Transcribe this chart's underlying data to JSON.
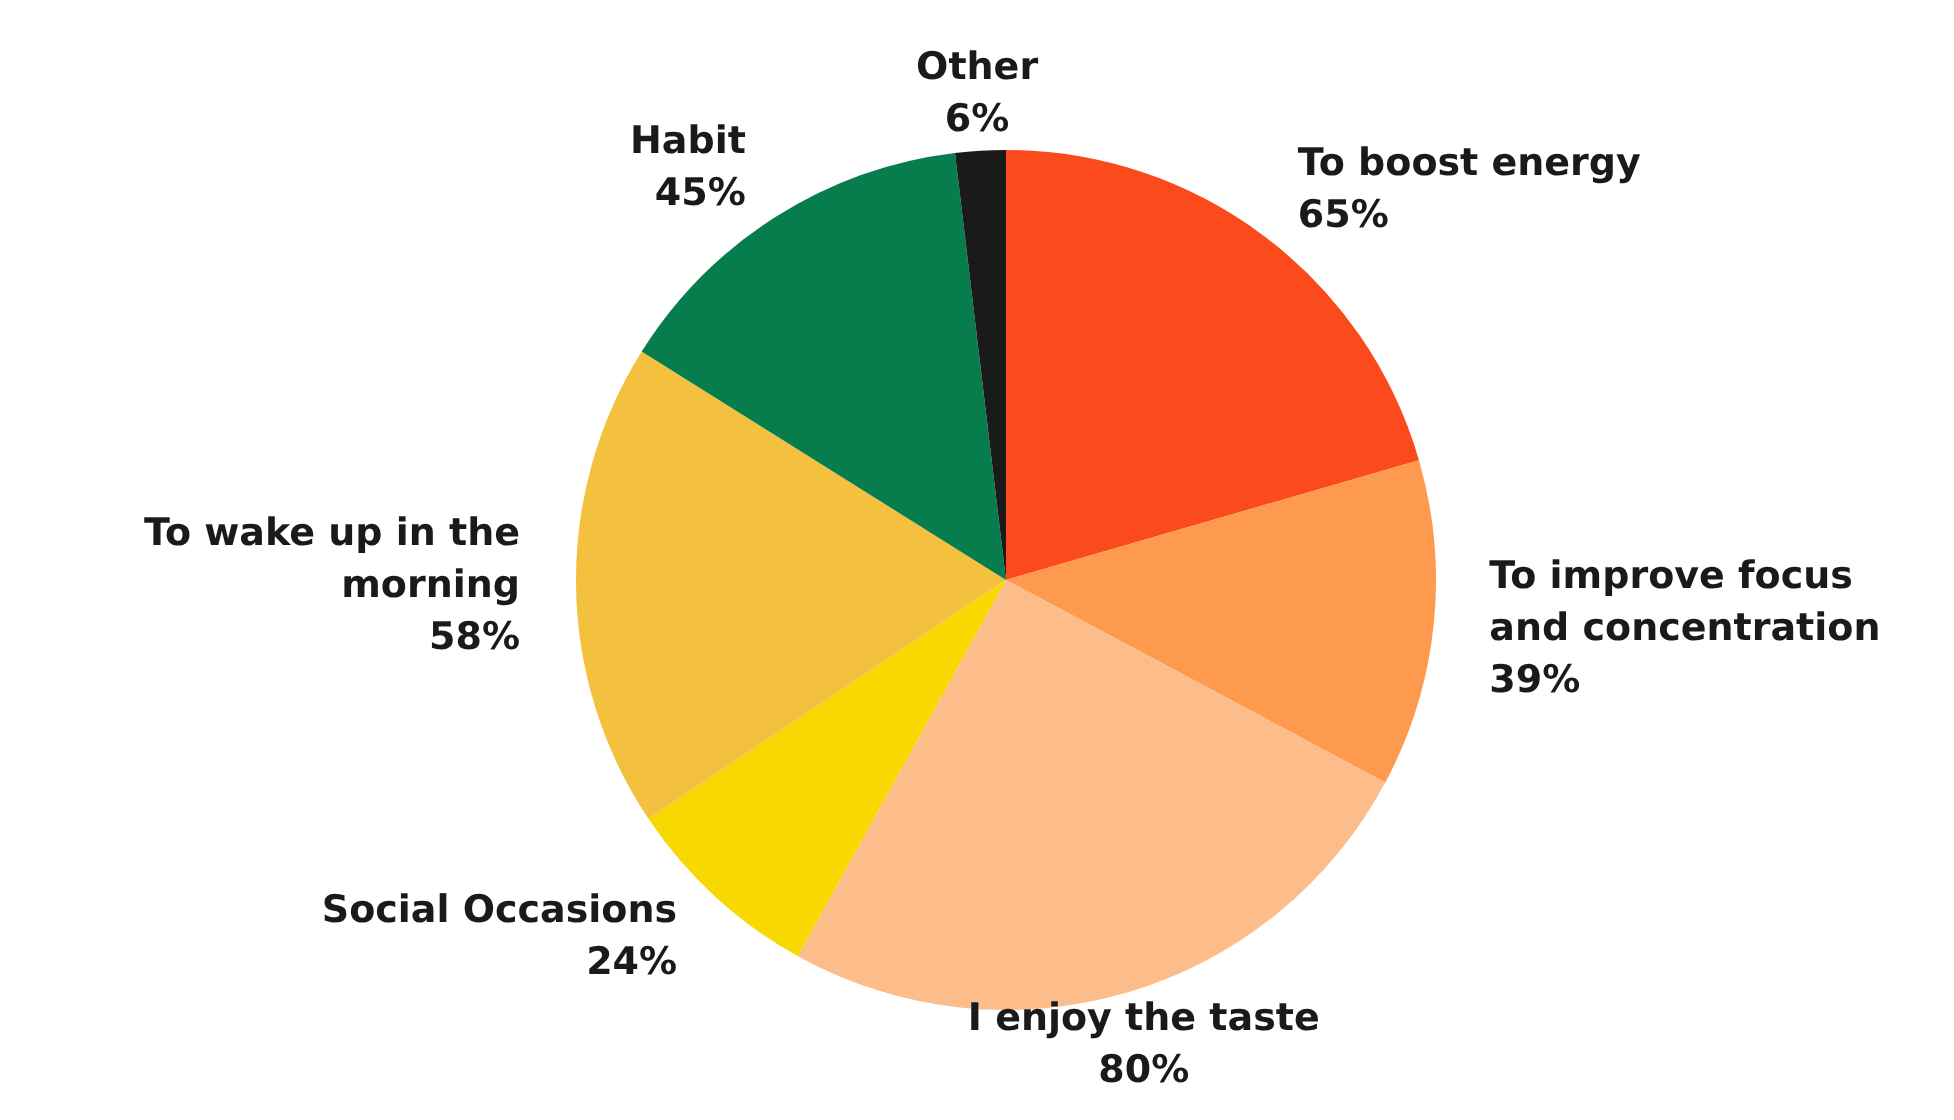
{
  "chart_data": {
    "type": "pie",
    "categories": [
      "To boost energy",
      "To improve focus and concentration",
      "I enjoy the taste",
      "Social Occasions",
      "To wake up in the morning",
      "Habit",
      "Other"
    ],
    "values": [
      65,
      39,
      80,
      24,
      58,
      45,
      6
    ],
    "value_labels": [
      "65%",
      "39%",
      "80%",
      "24%",
      "58%",
      "45%",
      "6%"
    ],
    "colors": [
      "#fb4a1b",
      "#fe9a4e",
      "#fdbd8a",
      "#f7d800",
      "#f4c13e",
      "#077c4c",
      "#1a1a1a"
    ],
    "legend": false
  }
}
